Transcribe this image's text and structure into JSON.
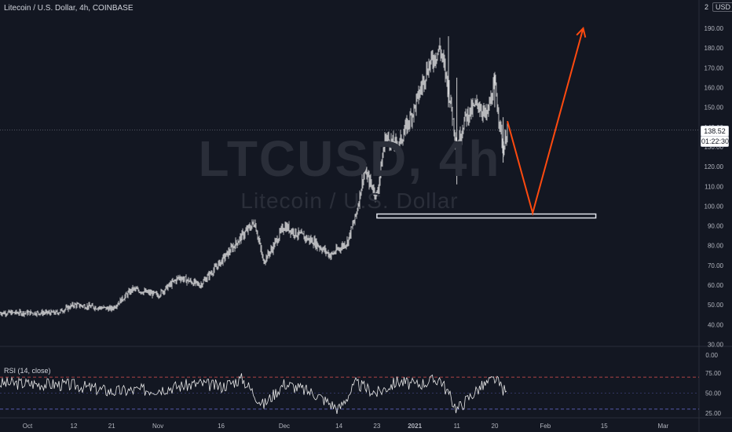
{
  "header": {
    "title": "Litecoin / U.S. Dollar, 4h, COINBASE"
  },
  "currency": {
    "count": "2",
    "code": "USD"
  },
  "watermark": {
    "symbol": "LTCUSD, 4h",
    "name": "Litecoin / U.S. Dollar"
  },
  "price_tag": {
    "last": "138.52",
    "countdown": "01:22:30"
  },
  "rsi": {
    "label": "RSI (14, close)"
  },
  "colors": {
    "background": "#131722",
    "candle": "#ffffff",
    "projection": "#ff4a0f",
    "rsi_band": "#e05050",
    "rsi_mid": "#6b6fd6",
    "grid": "#2a2e39",
    "axis_text": "#b2b5be"
  },
  "chart_data": [
    {
      "type": "line",
      "title": "Litecoin / U.S. Dollar, 4h, COINBASE",
      "y_ticks": [
        30,
        40,
        50,
        60,
        70,
        80,
        90,
        100,
        110,
        120,
        130,
        140,
        150,
        160,
        170,
        180,
        190
      ],
      "ylim": [
        28,
        200
      ],
      "x_ticks": [
        "Oct",
        "12",
        "21",
        "Nov",
        "16",
        "Dec",
        "14",
        "23",
        "2021",
        "11",
        "20",
        "Feb",
        "15",
        "Mar"
      ],
      "last_price": 138.52,
      "series": [
        {
          "x": [
            "Oct 1",
            "Oct 8",
            "Oct 12",
            "Oct 21",
            "Oct 26",
            "Nov 1",
            "Nov 6",
            "Nov 11",
            "Nov 16",
            "Nov 21",
            "Nov 24",
            "Nov 26",
            "Nov 28",
            "Dec 1",
            "Dec 4",
            "Dec 8",
            "Dec 12",
            "Dec 16",
            "Dec 18",
            "Dec 20",
            "Dec 23",
            "Dec 25",
            "Dec 28",
            "Jan 1",
            "Jan 4",
            "Jan 7",
            "Jan 9",
            "Jan 11",
            "Jan 13",
            "Jan 16",
            "Jan 18",
            "Jan 20",
            "Jan 22",
            "Jan 23"
          ],
          "values": [
            46,
            46,
            50,
            48,
            58,
            55,
            64,
            60,
            72,
            85,
            92,
            72,
            78,
            90,
            86,
            82,
            75,
            82,
            95,
            118,
            105,
            135,
            130,
            150,
            170,
            180,
            160,
            130,
            145,
            152,
            145,
            162,
            128,
            140
          ]
        }
      ]
    },
    {
      "type": "line",
      "title": "RSI (14, close)",
      "y_ticks": [
        25,
        50,
        75
      ],
      "ylim": [
        25,
        75
      ],
      "series": [
        {
          "x": [
            "Oct 1",
            "Oct 12",
            "Oct 21",
            "Nov 1",
            "Nov 11",
            "Nov 16",
            "Nov 21",
            "Nov 26",
            "Dec 1",
            "Dec 8",
            "Dec 14",
            "Dec 18",
            "Dec 23",
            "Dec 28",
            "Jan 1",
            "Jan 7",
            "Jan 11",
            "Jan 16",
            "Jan 20",
            "Jan 23"
          ],
          "values": [
            62,
            60,
            52,
            55,
            62,
            58,
            68,
            35,
            62,
            50,
            30,
            62,
            50,
            65,
            60,
            68,
            30,
            55,
            68,
            48
          ]
        }
      ]
    }
  ],
  "annotations": {
    "support_zone": {
      "low": 94,
      "high": 96
    },
    "projection_path": [
      {
        "date": "Jan 23",
        "price": 143
      },
      {
        "date": "Jan 29",
        "price": 96.5
      },
      {
        "date": "Feb 10",
        "price": 190
      }
    ]
  }
}
